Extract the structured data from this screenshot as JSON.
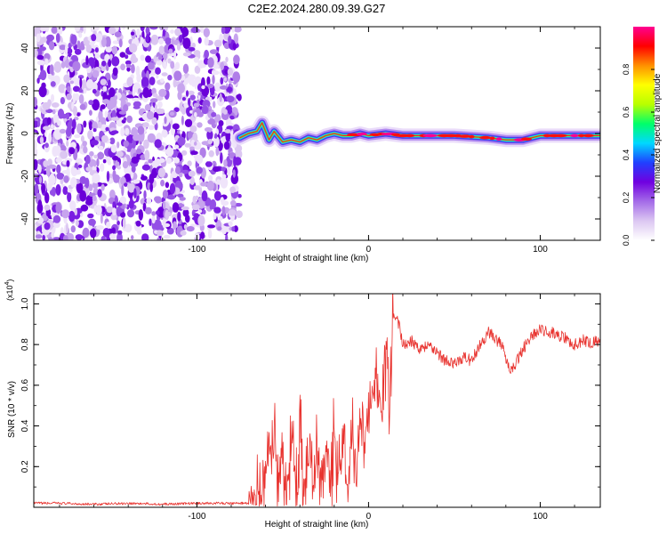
{
  "figure": {
    "title": "C2E2.2024.280.09.39.G27"
  },
  "chart_data": [
    {
      "type": "heatmap",
      "xlabel": "Height of straight line (km)",
      "ylabel": "Frequency (Hz)",
      "xlim": [
        -195,
        135
      ],
      "ylim": [
        -50,
        50
      ],
      "x_ticks": [
        -100,
        0,
        100
      ],
      "x_tick_labels": [
        "-100",
        "0",
        "100"
      ],
      "y_ticks": [
        -40,
        -20,
        0,
        20,
        40
      ],
      "y_tick_labels": [
        "-40",
        "-20",
        "0",
        "20",
        "40"
      ],
      "noise_region": {
        "x_range": [
          -195,
          -75
        ],
        "y_range": [
          -50,
          50
        ]
      },
      "signal_ridge": {
        "x": [
          -75,
          -70,
          -65,
          -62,
          -58,
          -55,
          -50,
          -45,
          -40,
          -35,
          -30,
          -25,
          -20,
          -15,
          -10,
          -5,
          0,
          10,
          20,
          30,
          50,
          70,
          80,
          90,
          100,
          110,
          120,
          135
        ],
        "y": [
          -2,
          0,
          1,
          5,
          -3,
          1,
          -4,
          -3,
          -4,
          -2,
          -3,
          -1,
          0,
          -1,
          -1,
          0,
          -1,
          0,
          -1,
          -1,
          -1,
          -2,
          -3,
          -3,
          -1,
          -1,
          -1,
          -1
        ]
      },
      "colorbar": {
        "label": "Normalized spectral amplitude",
        "range": [
          0,
          1
        ],
        "ticks": [
          0.0,
          0.2,
          0.4,
          0.6,
          0.8
        ],
        "tick_labels": [
          "0.0",
          "0.2",
          "0.4",
          "0.6",
          "0.8"
        ],
        "colors": [
          "#ffffff",
          "#dcc7f2",
          "#a46be8",
          "#7000e0",
          "#2040ff",
          "#00d8ff",
          "#00ff6a",
          "#b8ff00",
          "#ffff00",
          "#ff9000",
          "#ff0000",
          "#ff0090"
        ]
      }
    },
    {
      "type": "line",
      "xlabel": "Height of straight line (km)",
      "ylabel": "SNR (10 * v/v)",
      "multiplier_label": "(x10",
      "multiplier_exp": "4",
      "xlim": [
        -195,
        135
      ],
      "ylim": [
        0,
        1.05
      ],
      "x_ticks": [
        -100,
        0,
        100
      ],
      "x_tick_labels": [
        "-100",
        "0",
        "100"
      ],
      "y_ticks": [
        0.2,
        0.4,
        0.6,
        0.8,
        1.0
      ],
      "y_tick_labels": [
        "0.2",
        "0.4",
        "0.6",
        "0.8",
        "1.0"
      ],
      "color": "#e8322e",
      "x": [
        -195,
        -180,
        -160,
        -140,
        -120,
        -100,
        -90,
        -80,
        -75,
        -70,
        -65,
        -62,
        -60,
        -58,
        -55,
        -52,
        -50,
        -48,
        -45,
        -42,
        -40,
        -38,
        -35,
        -32,
        -30,
        -28,
        -25,
        -22,
        -20,
        -18,
        -15,
        -12,
        -10,
        -8,
        -5,
        -2,
        0,
        2,
        5,
        8,
        10,
        12,
        14,
        16,
        18,
        20,
        25,
        30,
        35,
        40,
        45,
        50,
        55,
        60,
        65,
        70,
        75,
        78,
        80,
        82,
        85,
        88,
        90,
        95,
        100,
        105,
        110,
        115,
        120,
        125,
        130,
        135
      ],
      "y": [
        0.02,
        0.02,
        0.015,
        0.02,
        0.015,
        0.02,
        0.02,
        0.02,
        0.02,
        0.02,
        0.03,
        0.08,
        0.2,
        0.3,
        0.35,
        0.1,
        0.25,
        0.05,
        0.3,
        0.1,
        0.35,
        0.05,
        0.28,
        0.1,
        0.38,
        0.05,
        0.3,
        0.1,
        0.35,
        0.08,
        0.3,
        0.1,
        0.4,
        0.2,
        0.45,
        0.25,
        0.5,
        0.55,
        0.6,
        0.5,
        0.75,
        0.6,
        0.9,
        0.95,
        0.88,
        0.8,
        0.82,
        0.78,
        0.8,
        0.76,
        0.72,
        0.7,
        0.74,
        0.72,
        0.8,
        0.86,
        0.82,
        0.8,
        0.74,
        0.68,
        0.7,
        0.74,
        0.78,
        0.84,
        0.87,
        0.86,
        0.85,
        0.83,
        0.8,
        0.82,
        0.81,
        0.82
      ]
    }
  ]
}
